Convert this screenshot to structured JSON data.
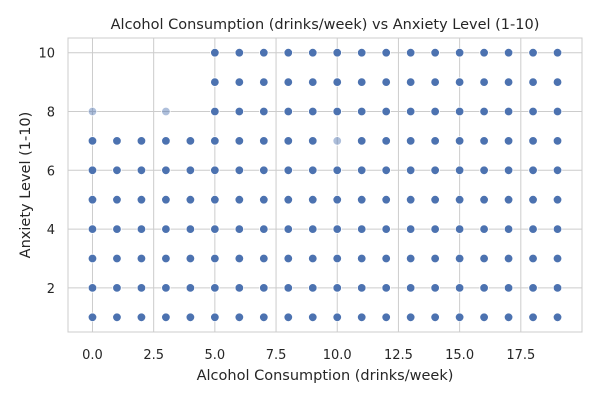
{
  "chart_data": {
    "type": "scatter",
    "title": "Alcohol Consumption (drinks/week) vs Anxiety Level (1-10)",
    "xlabel": "Alcohol Consumption (drinks/week)",
    "ylabel": "Anxiety Level (1-10)",
    "xlim": [
      -1,
      20
    ],
    "ylim": [
      0.5,
      10.5
    ],
    "xticks": [
      0,
      2.5,
      5,
      7.5,
      10,
      12.5,
      15,
      17.5
    ],
    "xtick_labels": [
      "0.0",
      "2.5",
      "5.0",
      "7.5",
      "10.0",
      "12.5",
      "15.0",
      "17.5"
    ],
    "yticks": [
      2,
      4,
      6,
      8,
      10
    ],
    "ytick_labels": [
      "2",
      "4",
      "6",
      "8",
      "10"
    ],
    "grid": true,
    "point_color": "#4c72b0",
    "points": [
      [
        0,
        1
      ],
      [
        0,
        2
      ],
      [
        0,
        3
      ],
      [
        0,
        4
      ],
      [
        0,
        5
      ],
      [
        0,
        6
      ],
      [
        0,
        7
      ],
      [
        0,
        8,
        "light"
      ],
      [
        1,
        1
      ],
      [
        1,
        2
      ],
      [
        1,
        3
      ],
      [
        1,
        4
      ],
      [
        1,
        5
      ],
      [
        1,
        6
      ],
      [
        1,
        7
      ],
      [
        2,
        1
      ],
      [
        2,
        2
      ],
      [
        2,
        3
      ],
      [
        2,
        4
      ],
      [
        2,
        5
      ],
      [
        2,
        6
      ],
      [
        2,
        7
      ],
      [
        3,
        1
      ],
      [
        3,
        2
      ],
      [
        3,
        3
      ],
      [
        3,
        4
      ],
      [
        3,
        5
      ],
      [
        3,
        6
      ],
      [
        3,
        7
      ],
      [
        3,
        8,
        "light"
      ],
      [
        4,
        1
      ],
      [
        4,
        2
      ],
      [
        4,
        3
      ],
      [
        4,
        4
      ],
      [
        4,
        5
      ],
      [
        4,
        6
      ],
      [
        4,
        7
      ],
      [
        5,
        1
      ],
      [
        5,
        2
      ],
      [
        5,
        3
      ],
      [
        5,
        4
      ],
      [
        5,
        5
      ],
      [
        5,
        6
      ],
      [
        5,
        7
      ],
      [
        5,
        8
      ],
      [
        5,
        9
      ],
      [
        5,
        10
      ],
      [
        6,
        1
      ],
      [
        6,
        2
      ],
      [
        6,
        3
      ],
      [
        6,
        4
      ],
      [
        6,
        5
      ],
      [
        6,
        6
      ],
      [
        6,
        7
      ],
      [
        6,
        8
      ],
      [
        6,
        9
      ],
      [
        6,
        10
      ],
      [
        7,
        1
      ],
      [
        7,
        2
      ],
      [
        7,
        3
      ],
      [
        7,
        4
      ],
      [
        7,
        5
      ],
      [
        7,
        6
      ],
      [
        7,
        7
      ],
      [
        7,
        8
      ],
      [
        7,
        9
      ],
      [
        7,
        10
      ],
      [
        8,
        1
      ],
      [
        8,
        2
      ],
      [
        8,
        3
      ],
      [
        8,
        4
      ],
      [
        8,
        5
      ],
      [
        8,
        6
      ],
      [
        8,
        7
      ],
      [
        8,
        8
      ],
      [
        8,
        9
      ],
      [
        8,
        10
      ],
      [
        9,
        1
      ],
      [
        9,
        2
      ],
      [
        9,
        3
      ],
      [
        9,
        4
      ],
      [
        9,
        5
      ],
      [
        9,
        6
      ],
      [
        9,
        7
      ],
      [
        9,
        8
      ],
      [
        9,
        9
      ],
      [
        9,
        10
      ],
      [
        10,
        1
      ],
      [
        10,
        2
      ],
      [
        10,
        3
      ],
      [
        10,
        4
      ],
      [
        10,
        5
      ],
      [
        10,
        6
      ],
      [
        10,
        7,
        "light"
      ],
      [
        10,
        8
      ],
      [
        10,
        9
      ],
      [
        10,
        10
      ],
      [
        11,
        1
      ],
      [
        11,
        2
      ],
      [
        11,
        3
      ],
      [
        11,
        4
      ],
      [
        11,
        5
      ],
      [
        11,
        6
      ],
      [
        11,
        7
      ],
      [
        11,
        8
      ],
      [
        11,
        9
      ],
      [
        11,
        10
      ],
      [
        12,
        1
      ],
      [
        12,
        2
      ],
      [
        12,
        3
      ],
      [
        12,
        4
      ],
      [
        12,
        5
      ],
      [
        12,
        6
      ],
      [
        12,
        7
      ],
      [
        12,
        8
      ],
      [
        12,
        9
      ],
      [
        12,
        10
      ],
      [
        13,
        1
      ],
      [
        13,
        2
      ],
      [
        13,
        3
      ],
      [
        13,
        4
      ],
      [
        13,
        5
      ],
      [
        13,
        6
      ],
      [
        13,
        7
      ],
      [
        13,
        8
      ],
      [
        13,
        9
      ],
      [
        13,
        10
      ],
      [
        14,
        1
      ],
      [
        14,
        2
      ],
      [
        14,
        3
      ],
      [
        14,
        4
      ],
      [
        14,
        5
      ],
      [
        14,
        6
      ],
      [
        14,
        7
      ],
      [
        14,
        8
      ],
      [
        14,
        9
      ],
      [
        14,
        10
      ],
      [
        15,
        1
      ],
      [
        15,
        2
      ],
      [
        15,
        3
      ],
      [
        15,
        4
      ],
      [
        15,
        5
      ],
      [
        15,
        6
      ],
      [
        15,
        7
      ],
      [
        15,
        8
      ],
      [
        15,
        9
      ],
      [
        15,
        10
      ],
      [
        16,
        1
      ],
      [
        16,
        2
      ],
      [
        16,
        3
      ],
      [
        16,
        4
      ],
      [
        16,
        5
      ],
      [
        16,
        6
      ],
      [
        16,
        7
      ],
      [
        16,
        8
      ],
      [
        16,
        9
      ],
      [
        16,
        10
      ],
      [
        17,
        1
      ],
      [
        17,
        2
      ],
      [
        17,
        3
      ],
      [
        17,
        4
      ],
      [
        17,
        5
      ],
      [
        17,
        6
      ],
      [
        17,
        7
      ],
      [
        17,
        8
      ],
      [
        17,
        9
      ],
      [
        17,
        10
      ],
      [
        18,
        1
      ],
      [
        18,
        2
      ],
      [
        18,
        3
      ],
      [
        18,
        4
      ],
      [
        18,
        5
      ],
      [
        18,
        6
      ],
      [
        18,
        7
      ],
      [
        18,
        8
      ],
      [
        18,
        9
      ],
      [
        18,
        10
      ],
      [
        19,
        1
      ],
      [
        19,
        2
      ],
      [
        19,
        3
      ],
      [
        19,
        4
      ],
      [
        19,
        5
      ],
      [
        19,
        6
      ],
      [
        19,
        7
      ],
      [
        19,
        8
      ],
      [
        19,
        9
      ],
      [
        19,
        10
      ]
    ]
  }
}
